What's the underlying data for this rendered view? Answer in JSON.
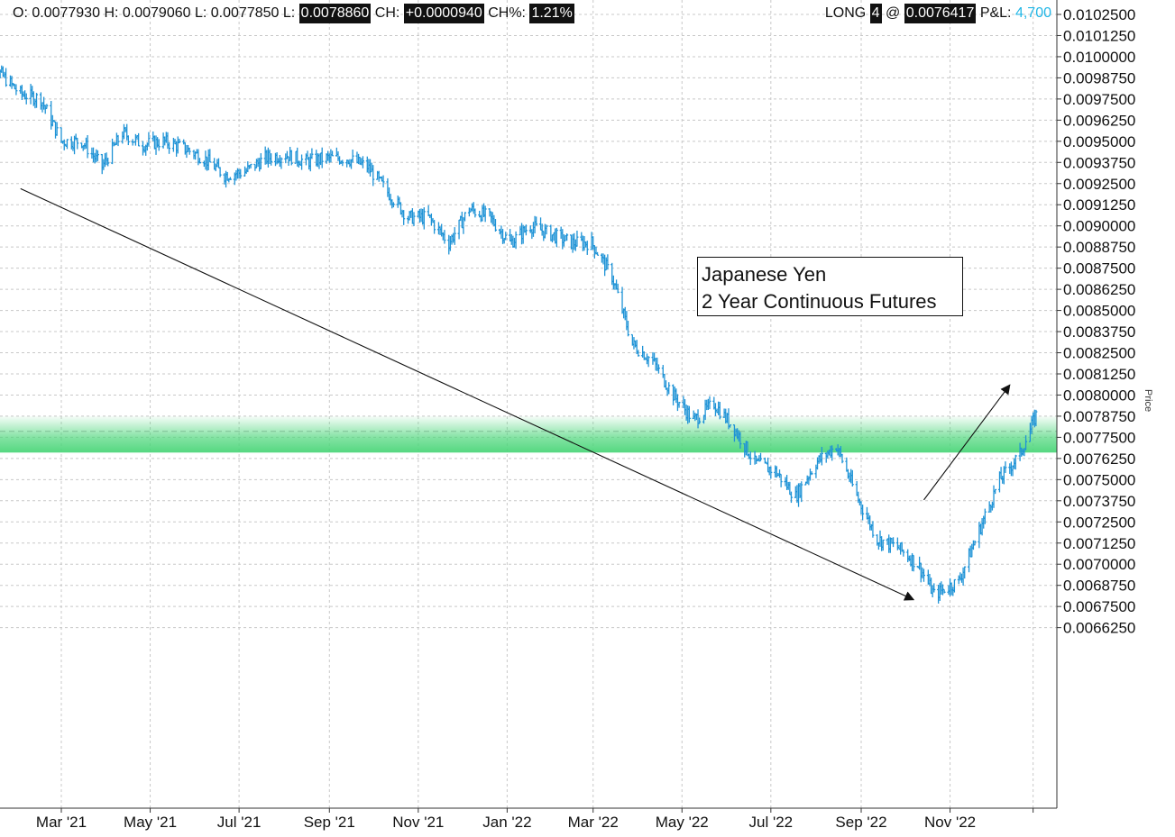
{
  "header": {
    "o_label": "O:",
    "o_value": "0.0077930",
    "h_label": "H:",
    "h_value": "0.0079060",
    "l_label": "L:",
    "l_value": "0.0077850",
    "l2_label": "L:",
    "l2_value": "0.0078860",
    "ch_label": "CH:",
    "ch_value": "+0.0000940",
    "chp_label": "CH%:",
    "chp_value": "1.21%",
    "position_label": "LONG",
    "position_qty": "4",
    "at_symbol": "@",
    "entry_price": "0.0076417",
    "pl_label": "P&L:",
    "pl_value": "4,700"
  },
  "annotation": {
    "line1": "Japanese Yen",
    "line2": "2 Year Continuous Futures"
  },
  "axis": {
    "price_label": "Price"
  },
  "colors": {
    "bars": "#1f93d6",
    "band": "#4cd67a",
    "grid": "#c8c8c8",
    "pl": "#21b6e6"
  },
  "chart_data": {
    "type": "ohlc",
    "title": "",
    "ylabel": "Price",
    "ylim": [
      0.0065,
      0.0103
    ],
    "yticks": [
      "0.0102500",
      "0.0101250",
      "0.0100000",
      "0.0098750",
      "0.0097500",
      "0.0096250",
      "0.0095000",
      "0.0093750",
      "0.0092500",
      "0.0091250",
      "0.0090000",
      "0.0088750",
      "0.0087500",
      "0.0086250",
      "0.0085000",
      "0.0083750",
      "0.0082500",
      "0.0081250",
      "0.0080000",
      "0.0078750",
      "0.0077500",
      "0.0076250",
      "0.0075000",
      "0.0073750",
      "0.0072500",
      "0.0071250",
      "0.0070000",
      "0.0068750",
      "0.0067500",
      "0.0066250"
    ],
    "xlim": [
      "2021-01-04",
      "2022-12-30"
    ],
    "xticks": [
      {
        "date": "2021-03-01",
        "label": "Mar '21"
      },
      {
        "date": "2021-05-01",
        "label": "May '21"
      },
      {
        "date": "2021-07-01",
        "label": "Jul '21"
      },
      {
        "date": "2021-09-01",
        "label": "Sep '21"
      },
      {
        "date": "2021-11-01",
        "label": "Nov '21"
      },
      {
        "date": "2022-01-01",
        "label": "Jan '22"
      },
      {
        "date": "2022-03-01",
        "label": "Mar '22"
      },
      {
        "date": "2022-05-01",
        "label": "May '22"
      },
      {
        "date": "2022-07-01",
        "label": "Jul '22"
      },
      {
        "date": "2022-09-01",
        "label": "Sep '22"
      },
      {
        "date": "2022-11-01",
        "label": "Nov '22"
      },
      {
        "date": "2022-12-28",
        "label": ""
      }
    ],
    "series_close": [
      [
        "2021-01-04",
        0.00992
      ],
      [
        "2021-01-18",
        0.0099
      ],
      [
        "2021-02-01",
        0.00978
      ],
      [
        "2021-02-15",
        0.00975
      ],
      [
        "2021-03-01",
        0.0095
      ],
      [
        "2021-03-15",
        0.0095
      ],
      [
        "2021-03-29",
        0.00935
      ],
      [
        "2021-04-12",
        0.00955
      ],
      [
        "2021-04-26",
        0.00948
      ],
      [
        "2021-05-10",
        0.0095
      ],
      [
        "2021-05-24",
        0.00946
      ],
      [
        "2021-06-07",
        0.0094
      ],
      [
        "2021-06-21",
        0.0093
      ],
      [
        "2021-07-05",
        0.00932
      ],
      [
        "2021-07-19",
        0.0094
      ],
      [
        "2021-08-02",
        0.00942
      ],
      [
        "2021-08-16",
        0.00938
      ],
      [
        "2021-08-30",
        0.0094
      ],
      [
        "2021-09-13",
        0.0094
      ],
      [
        "2021-09-27",
        0.00935
      ],
      [
        "2021-10-11",
        0.0092
      ],
      [
        "2021-10-25",
        0.00905
      ],
      [
        "2021-11-08",
        0.00905
      ],
      [
        "2021-11-22",
        0.0089
      ],
      [
        "2021-12-06",
        0.0091
      ],
      [
        "2021-12-20",
        0.00905
      ],
      [
        "2022-01-03",
        0.0089
      ],
      [
        "2022-01-17",
        0.009
      ],
      [
        "2022-01-31",
        0.00895
      ],
      [
        "2022-02-14",
        0.0089
      ],
      [
        "2022-02-28",
        0.0089
      ],
      [
        "2022-03-14",
        0.0087
      ],
      [
        "2022-03-28",
        0.0083
      ],
      [
        "2022-04-11",
        0.0082
      ],
      [
        "2022-04-25",
        0.008
      ],
      [
        "2022-05-09",
        0.00785
      ],
      [
        "2022-05-23",
        0.00795
      ],
      [
        "2022-06-06",
        0.0078
      ],
      [
        "2022-06-20",
        0.0076
      ],
      [
        "2022-07-04",
        0.00755
      ],
      [
        "2022-07-18",
        0.0074
      ],
      [
        "2022-08-01",
        0.0076
      ],
      [
        "2022-08-15",
        0.0077
      ],
      [
        "2022-08-29",
        0.0074
      ],
      [
        "2022-09-12",
        0.00715
      ],
      [
        "2022-09-26",
        0.0071
      ],
      [
        "2022-10-10",
        0.007
      ],
      [
        "2022-10-21",
        0.00682
      ],
      [
        "2022-11-07",
        0.0069
      ],
      [
        "2022-11-21",
        0.0072
      ],
      [
        "2022-12-05",
        0.0075
      ],
      [
        "2022-12-19",
        0.00765
      ],
      [
        "2022-12-30",
        0.00788
      ]
    ],
    "support_band": {
      "low": 0.00766,
      "high": 0.0078
    },
    "dashed_level": 0.0077855,
    "trendlines": [
      {
        "name": "downtrend",
        "from": [
          "2021-02-01",
          0.00922
        ],
        "to": [
          "2022-10-07",
          0.00679
        ],
        "arrow": "end"
      },
      {
        "name": "uptrend",
        "from": [
          "2022-10-14",
          0.00738
        ],
        "to": [
          "2022-12-12",
          0.00806
        ],
        "arrow": "end"
      }
    ]
  }
}
